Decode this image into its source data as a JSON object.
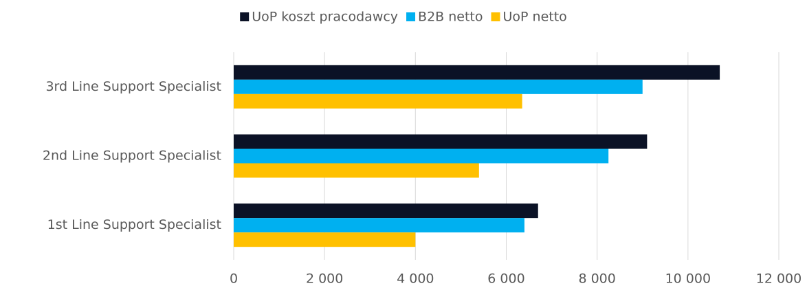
{
  "chart_data": {
    "type": "hbar",
    "categories": [
      "3rd Line Support Specialist",
      "2nd Line Support Specialist",
      "1st Line Support Specialist"
    ],
    "series": [
      {
        "name": "UoP koszt pracodawcy",
        "color": "#0b1226",
        "values": [
          10700,
          9100,
          6700
        ]
      },
      {
        "name": "B2B netto",
        "color": "#00b0f0",
        "values": [
          9000,
          8250,
          6400
        ]
      },
      {
        "name": "UoP netto",
        "color": "#ffc000",
        "values": [
          6350,
          5400,
          4000
        ]
      }
    ],
    "xlim": [
      0,
      12000
    ],
    "xticks": [
      0,
      {
        "value": 2000,
        "label": "2 000"
      },
      {
        "value": 4000,
        "label": "4 000"
      },
      {
        "value": 6000,
        "label": "6 000"
      },
      {
        "value": 8000,
        "label": "8 000"
      },
      {
        "value": 10000,
        "label": "10 000"
      },
      {
        "value": 12000,
        "label": "12 000"
      }
    ],
    "grid": true,
    "legend": "top"
  }
}
